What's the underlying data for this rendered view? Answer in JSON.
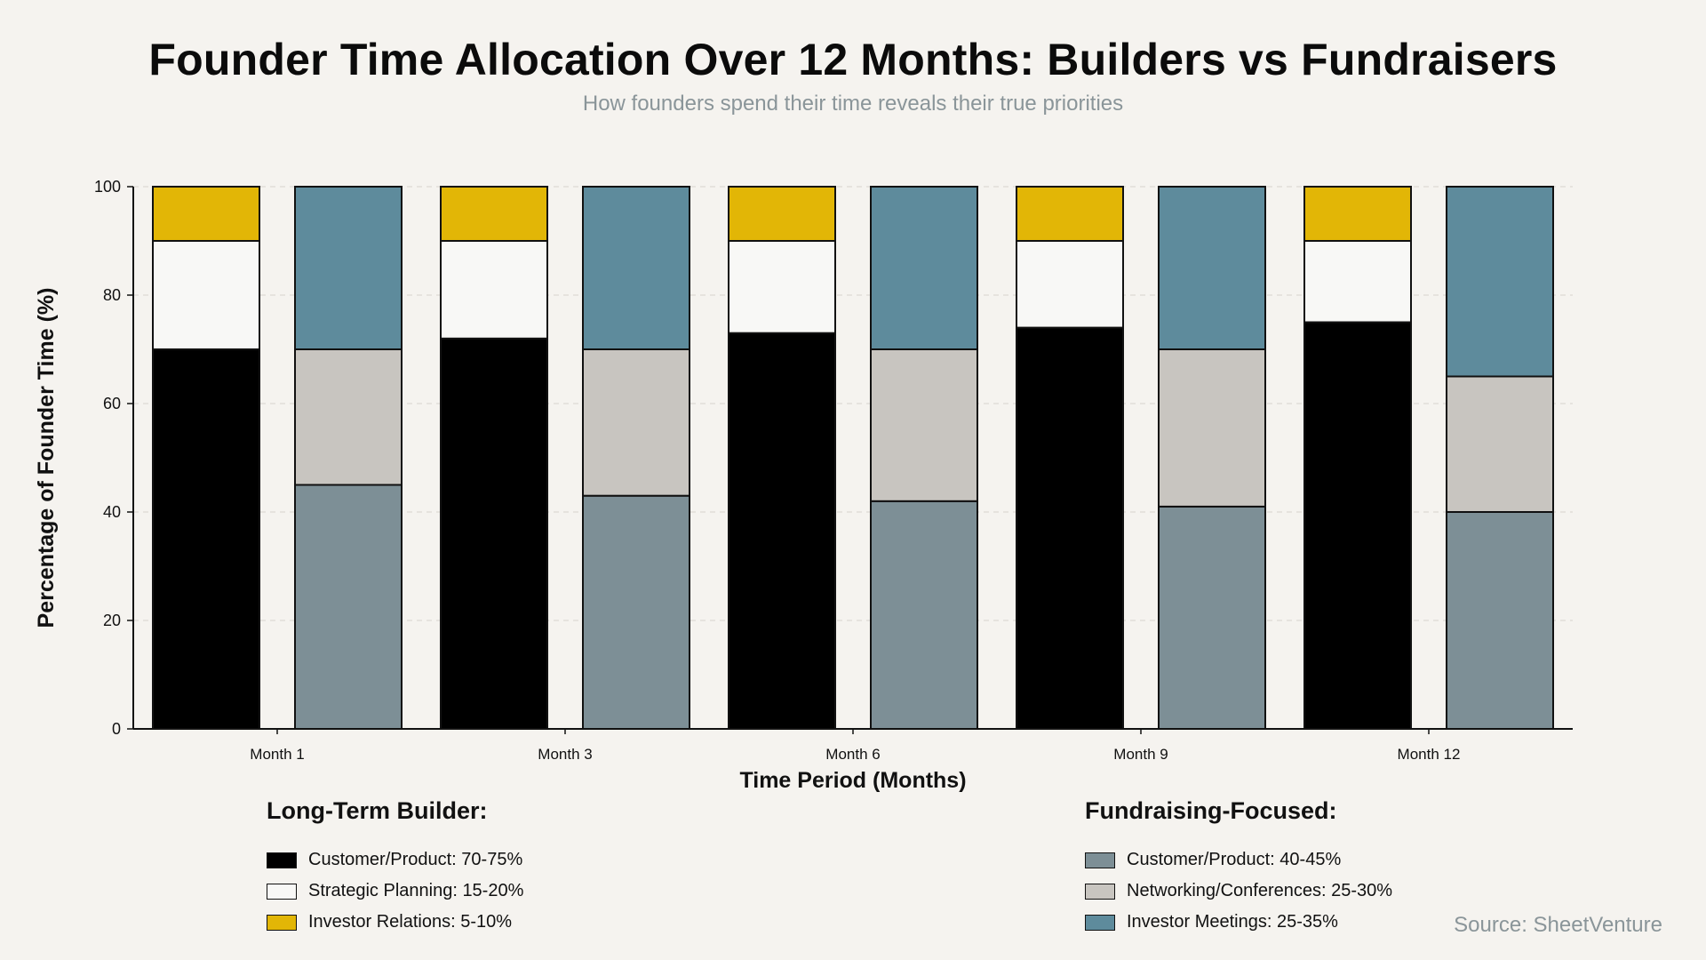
{
  "title": "Founder Time Allocation Over 12 Months: Builders vs Fundraisers",
  "subtitle": "How founders spend their time reveals their true priorities",
  "source": "Source: SheetVenture",
  "chart_data": {
    "type": "bar",
    "stacked": true,
    "grouped": true,
    "title": "Founder Time Allocation Over 12 Months: Builders vs Fundraisers",
    "subtitle": "How founders spend their time reveals their true priorities",
    "xlabel": "Time Period (Months)",
    "ylabel": "Percentage of Founder Time (%)",
    "ylim": [
      0,
      100
    ],
    "yticks": [
      0,
      20,
      40,
      60,
      80,
      100
    ],
    "grid": "horizontal dashed",
    "categories": [
      "Month 1",
      "Month 3",
      "Month 6",
      "Month 9",
      "Month 12"
    ],
    "groups": [
      {
        "name": "Long-Term Builder:",
        "series": [
          {
            "name": "Customer/Product: 70-75%",
            "color": "#000000",
            "values": [
              70,
              72,
              73,
              74,
              75
            ]
          },
          {
            "name": "Strategic Planning: 15-20%",
            "color": "#f8f8f6",
            "values": [
              20,
              18,
              17,
              16,
              15
            ]
          },
          {
            "name": "Investor Relations: 5-10%",
            "color": "#e2b606",
            "values": [
              10,
              10,
              10,
              10,
              10
            ]
          }
        ]
      },
      {
        "name": "Fundraising-Focused:",
        "series": [
          {
            "name": "Customer/Product: 40-45%",
            "color": "#7d8f96",
            "values": [
              45,
              43,
              42,
              41,
              40
            ]
          },
          {
            "name": "Networking/Conferences: 25-30%",
            "color": "#c8c5c0",
            "values": [
              25,
              27,
              28,
              29,
              25
            ]
          },
          {
            "name": "Investor Meetings: 25-35%",
            "color": "#5e8b9c",
            "values": [
              30,
              30,
              30,
              30,
              35
            ]
          }
        ]
      }
    ]
  }
}
